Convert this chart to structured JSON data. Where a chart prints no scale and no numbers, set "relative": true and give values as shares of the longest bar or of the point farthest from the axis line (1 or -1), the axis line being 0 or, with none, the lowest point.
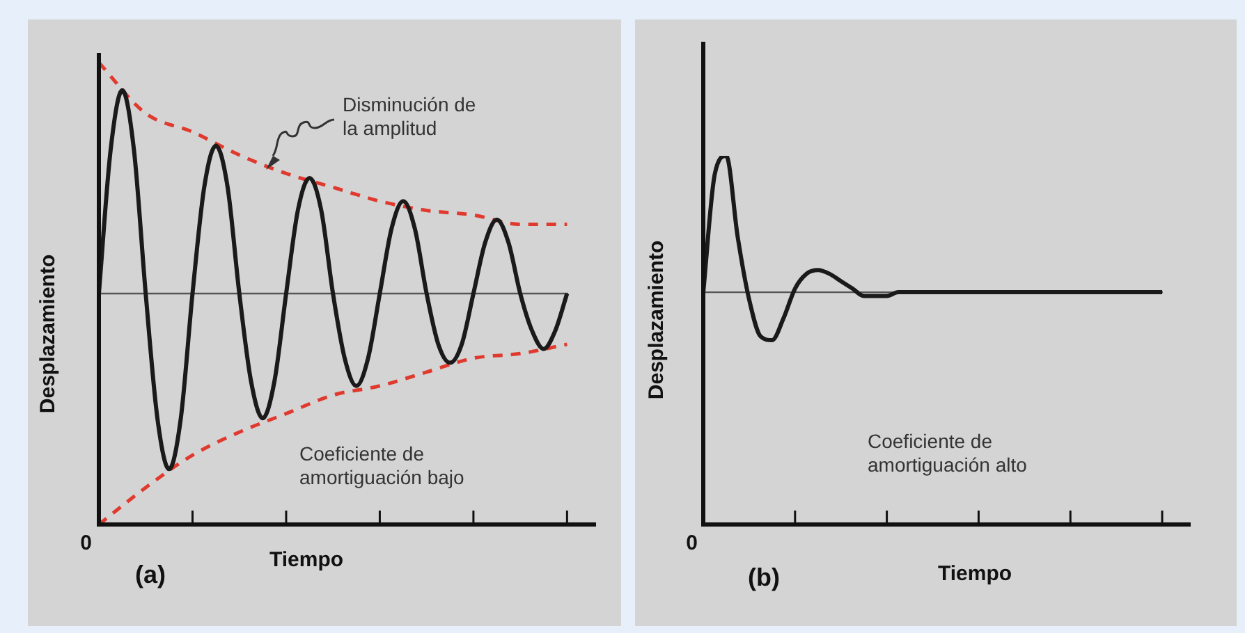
{
  "chart_data": [
    {
      "type": "line",
      "title": "(a)",
      "xlabel": "Tiempo",
      "ylabel": "Desplazamiento",
      "relative": true,
      "legend": false,
      "marker": "none",
      "grid": false,
      "categories": [
        null,
        null,
        null,
        null,
        null,
        null,
        null,
        null,
        null,
        null,
        null,
        null,
        null,
        null,
        null,
        null,
        null,
        null,
        null,
        null,
        null,
        null,
        null,
        null,
        null,
        null,
        null,
        null,
        null,
        null,
        null,
        null,
        null,
        null,
        null,
        null,
        null,
        null,
        null,
        null,
        null,
        null,
        null
      ],
      "series": [
        {
          "color": "#1a1a1a",
          "line_style": "solid",
          "values": [
            0.5,
            0.81,
            0.94,
            0.81,
            0.5,
            0.23,
            0.12,
            0.23,
            0.5,
            0.73,
            0.82,
            0.73,
            0.5,
            0.31,
            0.23,
            0.31,
            0.5,
            0.68,
            0.75,
            0.68,
            0.5,
            0.36,
            0.3,
            0.36,
            0.5,
            0.64,
            0.7,
            0.64,
            0.5,
            0.39,
            0.35,
            0.39,
            0.5,
            0.61,
            0.66,
            0.61,
            0.5,
            0.42,
            0.38,
            0.42,
            0.5,
            null,
            null
          ]
        },
        {
          "color": "#e0392e",
          "line_style": "dashed",
          "values": [
            1.0,
            null,
            null,
            null,
            0.89,
            null,
            null,
            null,
            0.85,
            null,
            null,
            null,
            0.8,
            null,
            null,
            null,
            0.76,
            null,
            null,
            null,
            0.73,
            null,
            null,
            null,
            0.7,
            null,
            null,
            null,
            0.68,
            null,
            null,
            null,
            0.67,
            null,
            null,
            null,
            0.65,
            null,
            null,
            null,
            0.65,
            null,
            null
          ]
        },
        {
          "color": "#e0392e",
          "line_style": "dashed",
          "values": [
            0.0,
            null,
            null,
            null,
            0.08,
            null,
            null,
            null,
            0.15,
            null,
            null,
            null,
            0.2,
            null,
            null,
            null,
            0.24,
            null,
            null,
            null,
            0.28,
            null,
            null,
            null,
            0.3,
            null,
            null,
            null,
            0.33,
            null,
            null,
            null,
            0.36,
            null,
            null,
            null,
            0.37,
            null,
            null,
            null,
            0.39,
            null,
            null
          ]
        }
      ],
      "ref_lines": [
        {
          "axis": "y",
          "value": 0.5,
          "color": "#555555"
        }
      ],
      "annotations": [
        "0",
        "Disminución de\nla amplitud",
        "Coeficiente de\namortiguación bajo"
      ]
    },
    {
      "type": "line",
      "title": "(b)",
      "xlabel": "Tiempo",
      "ylabel": "Desplazamiento",
      "relative": true,
      "legend": false,
      "marker": "none",
      "grid": false,
      "categories": [
        null,
        null,
        null,
        null,
        null,
        null,
        null,
        null,
        null,
        null,
        null,
        null,
        null,
        null,
        null,
        null,
        null,
        null,
        null,
        null,
        null,
        null,
        null,
        null,
        null,
        null,
        null,
        null,
        null,
        null,
        null,
        null,
        null,
        null,
        null,
        null,
        null,
        null,
        null,
        null,
        null,
        null,
        null
      ],
      "series": [
        {
          "color": "#1a1a1a",
          "line_style": "solid",
          "values": [
            0.63,
            0.95,
            1.0,
            0.78,
            0.61,
            0.51,
            0.5,
            0.56,
            0.64,
            0.68,
            0.69,
            0.68,
            0.66,
            0.64,
            0.62,
            0.62,
            0.62,
            0.63,
            0.63,
            0.63,
            0.63,
            0.63,
            0.63,
            0.63,
            0.63,
            0.63,
            0.63,
            0.63,
            0.63,
            0.63,
            0.63,
            0.63,
            0.63,
            0.63,
            0.63,
            0.63,
            0.63,
            0.63,
            0.63,
            0.63,
            0.63,
            null,
            null
          ]
        }
      ],
      "ref_lines": [
        {
          "axis": "y",
          "value": 0.63,
          "color": "#555555"
        }
      ],
      "annotations": [
        "0",
        "Coeficiente de\namortiguación alto"
      ]
    }
  ]
}
